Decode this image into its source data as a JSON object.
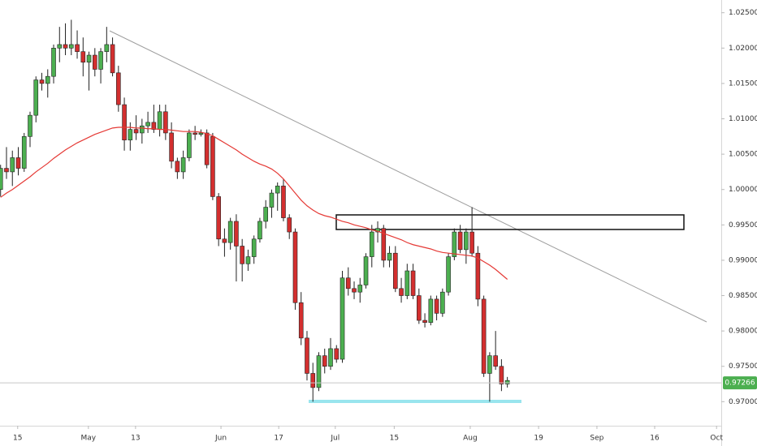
{
  "chart_data": {
    "type": "candlestick",
    "up_color": "#4caf50",
    "down_color": "#d32f2f",
    "wick_color": "#222222",
    "open": [
      1.0,
      1.003,
      1.0025,
      1.0045,
      1.003,
      1.0075,
      1.0105,
      1.0155,
      1.015,
      1.016,
      1.02,
      1.0205,
      1.02,
      1.0205,
      1.0195,
      1.018,
      1.019,
      1.017,
      1.0195,
      1.0205,
      1.0165,
      1.012,
      1.007,
      1.0085,
      1.008,
      1.009,
      1.0095,
      1.0085,
      1.011,
      1.008,
      1.004,
      1.0025,
      1.0045,
      1.008,
      1.0078,
      1.008,
      1.0075,
      0.999,
      0.993,
      0.9925,
      0.9955,
      0.992,
      0.9895,
      0.9905,
      0.993,
      0.9955,
      0.9975,
      0.9995,
      1.0005,
      0.996,
      0.994,
      0.984,
      0.979,
      0.974,
      0.972,
      0.9765,
      0.975,
      0.9775,
      0.976,
      0.9875,
      0.986,
      0.9855,
      0.9865,
      0.9905,
      0.994,
      0.9945,
      0.99,
      0.991,
      0.986,
      0.985,
      0.9885,
      0.985,
      0.9815,
      0.9812,
      0.9845,
      0.9825,
      0.9855,
      0.9905,
      0.994,
      0.9915,
      0.994,
      0.991,
      0.9845,
      0.974,
      0.9765,
      0.975,
      0.9725
    ],
    "high": [
      1.0035,
      1.006,
      1.0055,
      1.006,
      1.008,
      1.011,
      1.016,
      1.0165,
      1.017,
      1.0205,
      1.023,
      1.0235,
      1.024,
      1.0225,
      1.0215,
      1.0195,
      1.02,
      1.02,
      1.023,
      1.0215,
      1.0175,
      1.013,
      1.0095,
      1.0105,
      1.01,
      1.011,
      1.012,
      1.012,
      1.012,
      1.0095,
      1.0045,
      1.0055,
      1.0085,
      1.009,
      1.0085,
      1.0085,
      1.008,
      0.9995,
      0.9945,
      0.996,
      0.9965,
      0.993,
      0.9915,
      0.9935,
      0.996,
      0.9985,
      1.0,
      1.001,
      1.0015,
      0.9965,
      0.9945,
      0.9855,
      0.98,
      0.9755,
      0.977,
      0.9775,
      0.979,
      0.978,
      0.9885,
      0.989,
      0.987,
      0.9875,
      0.991,
      0.995,
      0.9955,
      0.995,
      0.992,
      0.992,
      0.9875,
      0.9895,
      0.9895,
      0.986,
      0.9825,
      0.985,
      0.985,
      0.986,
      0.991,
      0.9945,
      0.995,
      0.9945,
      0.9975,
      0.992,
      0.985,
      0.977,
      0.98,
      0.976,
      0.9735
    ],
    "low": [
      0.999,
      1.0015,
      1.0005,
      1.002,
      1.0025,
      1.006,
      1.0095,
      1.014,
      1.013,
      1.015,
      1.018,
      1.019,
      1.019,
      1.0185,
      1.016,
      1.014,
      1.016,
      1.015,
      1.018,
      1.016,
      1.011,
      1.0055,
      1.0055,
      1.007,
      1.0065,
      1.008,
      1.008,
      1.0075,
      1.007,
      1.003,
      1.0015,
      1.0015,
      1.004,
      1.007,
      1.0075,
      1.003,
      0.9985,
      0.992,
      0.9905,
      0.9915,
      0.987,
      0.987,
      0.9885,
      0.9895,
      0.9925,
      0.9945,
      0.996,
      0.997,
      0.9955,
      0.993,
      0.983,
      0.978,
      0.973,
      0.97,
      0.9715,
      0.974,
      0.9745,
      0.9755,
      0.9755,
      0.985,
      0.9845,
      0.984,
      0.986,
      0.989,
      0.9925,
      0.989,
      0.989,
      0.9855,
      0.984,
      0.9845,
      0.9845,
      0.981,
      0.9805,
      0.9808,
      0.9815,
      0.982,
      0.985,
      0.99,
      0.991,
      0.9895,
      0.9905,
      0.9835,
      0.9735,
      0.97,
      0.9745,
      0.9715,
      0.972
    ],
    "close": [
      1.003,
      1.0025,
      1.0045,
      1.003,
      1.0075,
      1.0105,
      1.0155,
      1.015,
      1.016,
      1.02,
      1.0205,
      1.02,
      1.0205,
      1.0195,
      1.018,
      1.019,
      1.017,
      1.0195,
      1.0205,
      1.0165,
      1.012,
      1.007,
      1.0085,
      1.008,
      1.009,
      1.0095,
      1.0085,
      1.011,
      1.008,
      1.004,
      1.0025,
      1.0045,
      1.008,
      1.0078,
      1.008,
      1.0035,
      0.999,
      0.993,
      0.9925,
      0.9955,
      0.992,
      0.9895,
      0.9905,
      0.993,
      0.9955,
      0.9975,
      0.9995,
      1.0005,
      0.996,
      0.994,
      0.984,
      0.979,
      0.974,
      0.972,
      0.9765,
      0.975,
      0.9775,
      0.976,
      0.9875,
      0.986,
      0.9855,
      0.9865,
      0.9905,
      0.994,
      0.9945,
      0.99,
      0.991,
      0.986,
      0.985,
      0.9885,
      0.985,
      0.9815,
      0.9812,
      0.9845,
      0.9825,
      0.9855,
      0.9905,
      0.994,
      0.9915,
      0.994,
      0.991,
      0.9845,
      0.974,
      0.9765,
      0.975,
      0.9725,
      0.973
    ],
    "moving_average": {
      "color": "#e53935",
      "values": [
        0.9989,
        0.9995,
        1.0,
        1.0006,
        1.0012,
        1.0018,
        1.0025,
        1.0031,
        1.0037,
        1.0044,
        1.005,
        1.0056,
        1.0061,
        1.0066,
        1.007,
        1.0074,
        1.0078,
        1.0081,
        1.0084,
        1.0087,
        1.0088,
        1.0088,
        1.0088,
        1.0087,
        1.0087,
        1.0086,
        1.0086,
        1.0085,
        1.0085,
        1.0084,
        1.0083,
        1.0082,
        1.0082,
        1.0082,
        1.0081,
        1.0079,
        1.0076,
        1.0071,
        1.0066,
        1.0061,
        1.0056,
        1.005,
        1.0045,
        1.004,
        1.0036,
        1.0033,
        1.0029,
        1.0023,
        1.0015,
        1.0005,
        0.9995,
        0.9985,
        0.9977,
        0.9971,
        0.9966,
        0.9963,
        0.9961,
        0.9958,
        0.9955,
        0.9953,
        0.995,
        0.9948,
        0.9946,
        0.9943,
        0.9941,
        0.9938,
        0.9935,
        0.9932,
        0.9929,
        0.9925,
        0.9922,
        0.992,
        0.9918,
        0.9916,
        0.9913,
        0.9911,
        0.991,
        0.9909,
        0.9908,
        0.9907,
        0.9906,
        0.9903,
        0.9898,
        0.9893,
        0.9887,
        0.988,
        0.9873
      ]
    },
    "last_price": 0.97266,
    "last_price_color": "#4caf50",
    "ylim": [
      0.9666,
      1.0268
    ],
    "yticks": [
      {
        "value": 0.97,
        "label": "0.97000"
      },
      {
        "value": 0.975,
        "label": "0.97500"
      },
      {
        "value": 0.98,
        "label": "0.98000"
      },
      {
        "value": 0.985,
        "label": "0.98500"
      },
      {
        "value": 0.99,
        "label": "0.99000"
      },
      {
        "value": 0.995,
        "label": "0.99500"
      },
      {
        "value": 1.0,
        "label": "1.00000"
      },
      {
        "value": 1.005,
        "label": "1.00500"
      },
      {
        "value": 1.01,
        "label": "1.01000"
      },
      {
        "value": 1.015,
        "label": "1.01500"
      },
      {
        "value": 1.02,
        "label": "1.02000"
      },
      {
        "value": 1.025,
        "label": "1.02500"
      }
    ],
    "xlim": [
      -0.1,
      122.3
    ],
    "xticks": [
      {
        "value": 2.9,
        "label": "15"
      },
      {
        "value": 14.9,
        "label": "May"
      },
      {
        "value": 22.9,
        "label": "13"
      },
      {
        "value": 37.4,
        "label": "Jun"
      },
      {
        "value": 47.2,
        "label": "17"
      },
      {
        "value": 56.8,
        "label": "Jul"
      },
      {
        "value": 66.8,
        "label": "15"
      },
      {
        "value": 79.7,
        "label": "Aug"
      },
      {
        "value": 91.3,
        "label": "19"
      },
      {
        "value": 101.2,
        "label": "Sep"
      },
      {
        "value": 111.0,
        "label": "16"
      },
      {
        "value": 121.5,
        "label": "Oct"
      }
    ],
    "grid": false
  }
}
